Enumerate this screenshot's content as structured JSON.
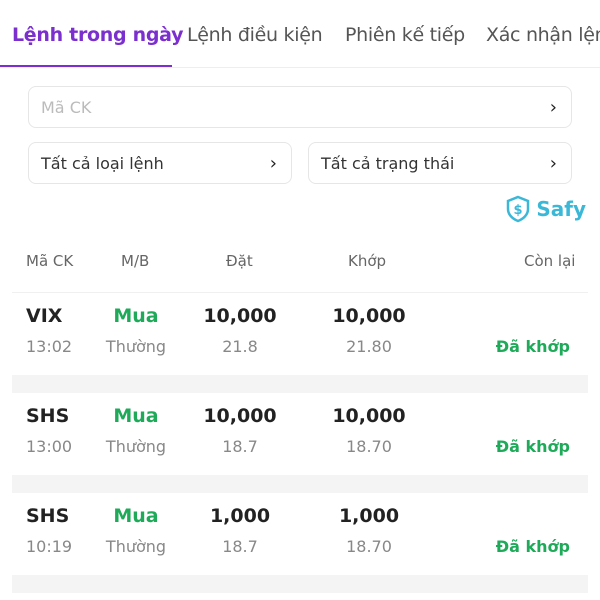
{
  "tabs": [
    {
      "label": "Lệnh trong ngày",
      "active": true
    },
    {
      "label": "Lệnh điều kiện"
    },
    {
      "label": "Phiên kế tiếp"
    },
    {
      "label": "Xác nhận lệnh"
    }
  ],
  "filters": {
    "symbol_placeholder": "Mã CK",
    "order_type": "Tất cả loại lệnh",
    "status": "Tất cả trạng thái"
  },
  "brand": {
    "name": "Safy",
    "color": "#3bb8d8"
  },
  "colors": {
    "accent": "#7b2fce",
    "buy": "#1faa5a"
  },
  "table": {
    "headers": [
      "Mã CK",
      "M/B",
      "Đặt",
      "Khớp",
      "Còn lại"
    ],
    "rows": [
      {
        "symbol": "VIX",
        "time": "13:02",
        "side": "Mua",
        "type": "Thường",
        "order_qty": "10,000",
        "order_price": "21.8",
        "match_qty": "10,000",
        "match_price": "21.80",
        "status": "Đã khớp"
      },
      {
        "symbol": "SHS",
        "time": "13:00",
        "side": "Mua",
        "type": "Thường",
        "order_qty": "10,000",
        "order_price": "18.7",
        "match_qty": "10,000",
        "match_price": "18.70",
        "status": "Đã khớp"
      },
      {
        "symbol": "SHS",
        "time": "10:19",
        "side": "Mua",
        "type": "Thường",
        "order_qty": "1,000",
        "order_price": "18.7",
        "match_qty": "1,000",
        "match_price": "18.70",
        "status": "Đã khớp"
      }
    ]
  }
}
